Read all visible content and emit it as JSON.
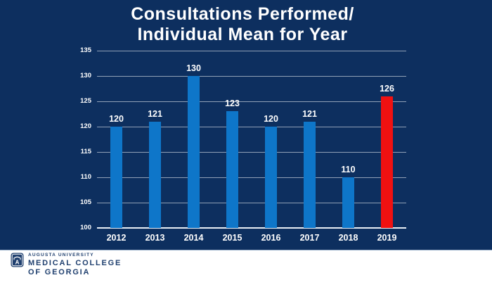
{
  "title": {
    "line1": "Consultations Performed/",
    "line2": "Individual Mean for Year"
  },
  "chart_data": {
    "type": "bar",
    "title": "Consultations Performed/ Individual Mean for Year",
    "categories": [
      "2012",
      "2013",
      "2014",
      "2015",
      "2016",
      "2017",
      "2018",
      "2019"
    ],
    "values": [
      120,
      121,
      130,
      123,
      120,
      121,
      110,
      126
    ],
    "bar_colors": [
      "#0E76C9",
      "#0E76C9",
      "#0E76C9",
      "#0E76C9",
      "#0E76C9",
      "#0E76C9",
      "#0E76C9",
      "#F01111"
    ],
    "highlight_index": 7,
    "xlabel": "",
    "ylabel": "",
    "ylim": [
      100,
      135
    ],
    "yticks": [
      100,
      105,
      110,
      115,
      120,
      125,
      130,
      135
    ],
    "grid": true,
    "legend": "none",
    "data_labels": true
  },
  "colors": {
    "background": "#0D2F5F",
    "bar_blue": "#0E76C9",
    "bar_red": "#F01111",
    "gridline": "rgba(255,255,255,0.55)",
    "axis_line": "#E8EEF5",
    "chart_text": "#FFFFFF",
    "footer_text": "#20406F",
    "footer_background": "#FFFFFF"
  },
  "footer": {
    "logo": "augusta-university-shield",
    "university": "AUGUSTA UNIVERSITY",
    "college_line1": "MEDICAL COLLEGE",
    "college_line2": "OF GEORGIA"
  }
}
